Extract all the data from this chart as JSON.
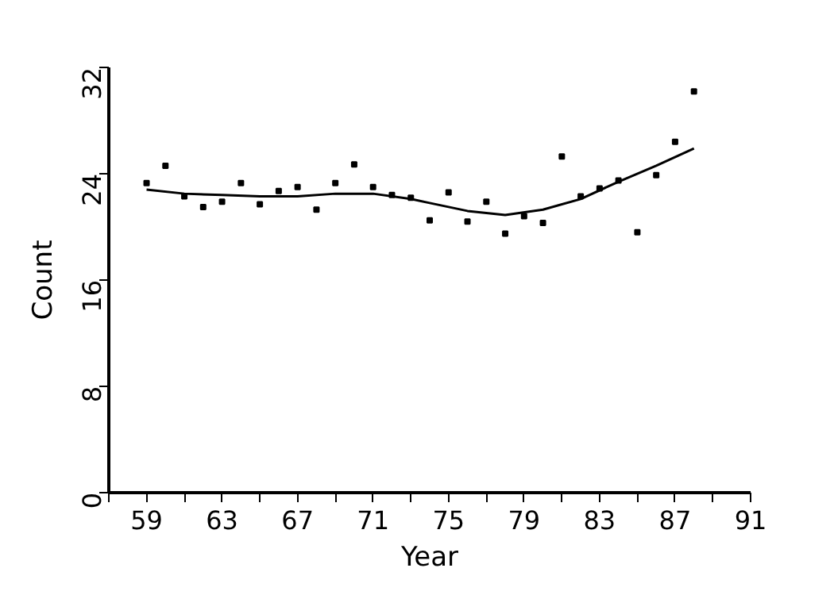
{
  "chart_data": {
    "type": "scatter",
    "xlabel": "Year",
    "ylabel": "Count",
    "xlim": [
      57,
      91
    ],
    "ylim": [
      0,
      32
    ],
    "xticks": [
      {
        "value": 57,
        "label": null
      },
      59,
      {
        "value": 61,
        "label": null
      },
      63,
      {
        "value": 65,
        "label": null
      },
      67,
      {
        "value": 69,
        "label": null
      },
      71,
      {
        "value": 73,
        "label": null
      },
      75,
      {
        "value": 77,
        "label": null
      },
      79,
      {
        "value": 81,
        "label": null
      },
      83,
      {
        "value": 85,
        "label": null
      },
      87,
      {
        "value": 89,
        "label": null
      },
      91
    ],
    "yticks": [
      0,
      8,
      16,
      24,
      32
    ],
    "grid": false,
    "series": [
      {
        "marker": "square",
        "color": "#000000",
        "x": [
          59,
          60,
          61,
          62,
          63,
          64,
          65,
          66,
          67,
          68,
          69,
          70,
          71,
          72,
          73,
          74,
          75,
          76,
          77,
          78,
          79,
          80,
          81,
          82,
          83,
          84,
          85,
          86,
          87,
          88
        ],
        "values": [
          23.3,
          24.6,
          22.3,
          21.5,
          21.9,
          23.3,
          21.7,
          22.7,
          23.0,
          21.3,
          23.3,
          24.7,
          23.0,
          22.4,
          22.2,
          20.5,
          22.6,
          20.4,
          21.9,
          19.5,
          20.8,
          20.3,
          25.3,
          22.3,
          22.9,
          23.5,
          19.6,
          23.9,
          26.4,
          30.2
        ]
      },
      {
        "type": "line",
        "color": "#000000",
        "line_style": "solid",
        "x": [
          59,
          61,
          63,
          65,
          67,
          69,
          71,
          73,
          74,
          76,
          78,
          80,
          82,
          84,
          86,
          88
        ],
        "values": [
          22.8,
          22.5,
          22.4,
          22.3,
          22.3,
          22.5,
          22.5,
          22.1,
          21.8,
          21.2,
          20.9,
          21.3,
          22.1,
          23.4,
          24.6,
          25.9
        ]
      }
    ]
  }
}
